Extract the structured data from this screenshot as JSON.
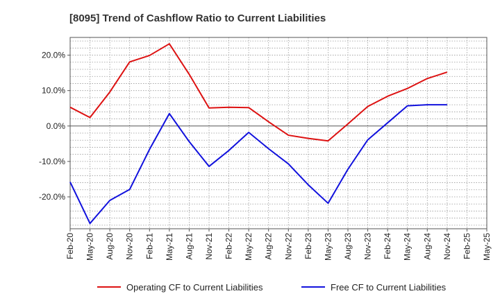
{
  "chart_data": {
    "type": "line",
    "title": "[8095]  Trend of Cashflow Ratio to Current Liabilities",
    "xlabel": "",
    "ylabel": "",
    "categories": [
      "Feb-20",
      "May-20",
      "Aug-20",
      "Nov-20",
      "Feb-21",
      "May-21",
      "Aug-21",
      "Nov-21",
      "Feb-22",
      "May-22",
      "Aug-22",
      "Nov-22",
      "Feb-23",
      "May-23",
      "Aug-23",
      "Nov-23",
      "Feb-24",
      "May-24",
      "Aug-24",
      "Nov-24",
      "Feb-25",
      "May-25"
    ],
    "ylim": [
      -29.0,
      25.0
    ],
    "y_ticks": [
      20,
      10,
      0,
      -10,
      -20
    ],
    "y_tick_labels": [
      "20.0%",
      "10.0%",
      "0.0%",
      "-10.0%",
      "-20.0%"
    ],
    "grid": true,
    "legend_position": "bottom",
    "series": [
      {
        "name": "Operating CF to Current Liabilities",
        "color": "#dd1111",
        "values": [
          5.3,
          2.4,
          9.6,
          18.1,
          19.9,
          23.2,
          14.6,
          5.1,
          5.3,
          5.2,
          1.2,
          -2.6,
          -3.5,
          -4.2,
          0.6,
          5.5,
          8.4,
          10.6,
          13.4,
          15.2,
          null,
          null
        ]
      },
      {
        "name": "Free CF to Current Liabilities",
        "color": "#1111dd",
        "values": [
          -15.8,
          -27.5,
          -21.0,
          -17.9,
          -6.6,
          3.5,
          -4.4,
          -11.4,
          -6.9,
          -1.8,
          -6.4,
          -10.7,
          -16.6,
          -21.8,
          -12.2,
          -3.9,
          0.9,
          5.7,
          6.0,
          6.0,
          null,
          null
        ]
      }
    ]
  }
}
